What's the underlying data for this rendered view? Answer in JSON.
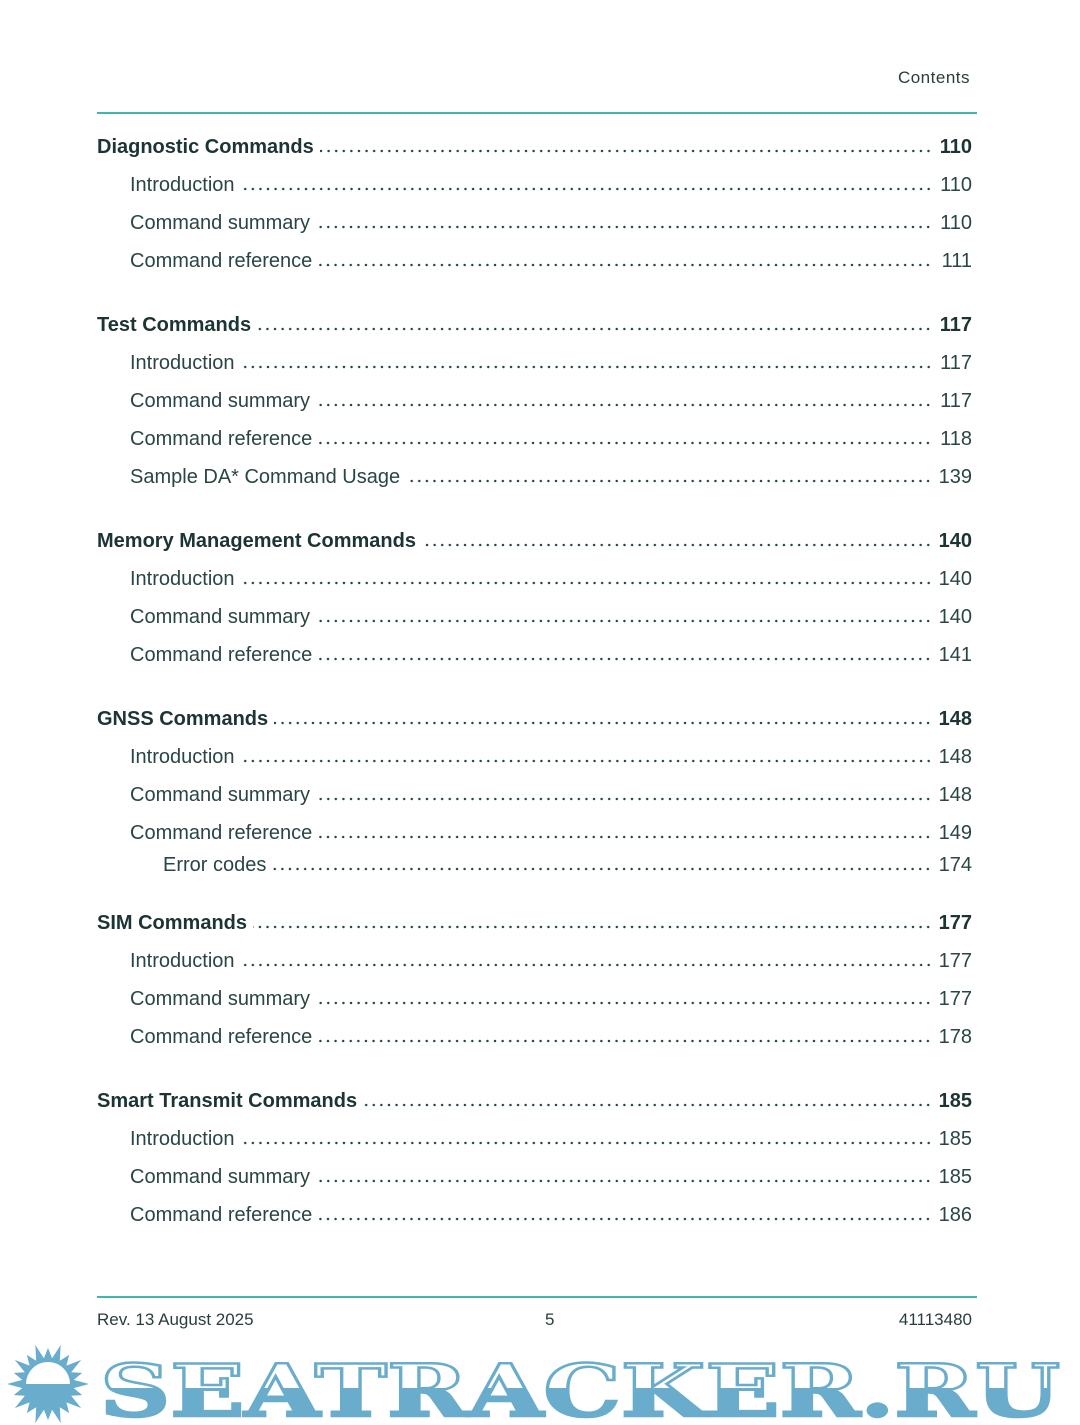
{
  "header": {
    "running_title": "Contents"
  },
  "toc": [
    {
      "title": "Diagnostic Commands",
      "page": "110",
      "level": 1,
      "items": [
        {
          "title": "Introduction",
          "page": "110"
        },
        {
          "title": "Command summary",
          "page": "110"
        },
        {
          "title": "Command reference",
          "page": "111"
        }
      ]
    },
    {
      "title": "Test Commands",
      "page": "117",
      "level": 1,
      "items": [
        {
          "title": "Introduction",
          "page": "117"
        },
        {
          "title": "Command summary",
          "page": "117"
        },
        {
          "title": "Command reference",
          "page": "118"
        },
        {
          "title": "Sample DA* Command Usage",
          "page": "139"
        }
      ]
    },
    {
      "title": "Memory Management Commands",
      "page": "140",
      "level": 1,
      "items": [
        {
          "title": "Introduction",
          "page": "140"
        },
        {
          "title": "Command summary",
          "page": "140"
        },
        {
          "title": "Command reference",
          "page": "141"
        }
      ]
    },
    {
      "title": "GNSS Commands",
      "page": "148",
      "level": 1,
      "items": [
        {
          "title": "Introduction",
          "page": "148"
        },
        {
          "title": "Command summary",
          "page": "148"
        },
        {
          "title": "Command reference",
          "page": "149",
          "sub": [
            {
              "title": "Error codes",
              "page": "174"
            }
          ]
        }
      ]
    },
    {
      "title": "SIM Commands",
      "page": "177",
      "level": 1,
      "items": [
        {
          "title": "Introduction",
          "page": "177"
        },
        {
          "title": "Command summary",
          "page": "177"
        },
        {
          "title": "Command reference",
          "page": "178"
        }
      ]
    },
    {
      "title": "Smart Transmit Commands",
      "page": "185",
      "level": 1,
      "items": [
        {
          "title": "Introduction",
          "page": "185"
        },
        {
          "title": "Command summary",
          "page": "185"
        },
        {
          "title": "Command reference",
          "page": "186"
        }
      ]
    }
  ],
  "footer": {
    "revision": "Rev. 13  August 2025",
    "page_number": "5",
    "doc_number": "41113480"
  },
  "watermark": {
    "text": "SEATRACKER.RU",
    "color": "#6aaccc"
  },
  "colors": {
    "accent_rule": "#3fb5b0",
    "text": "#1f3a3a"
  }
}
